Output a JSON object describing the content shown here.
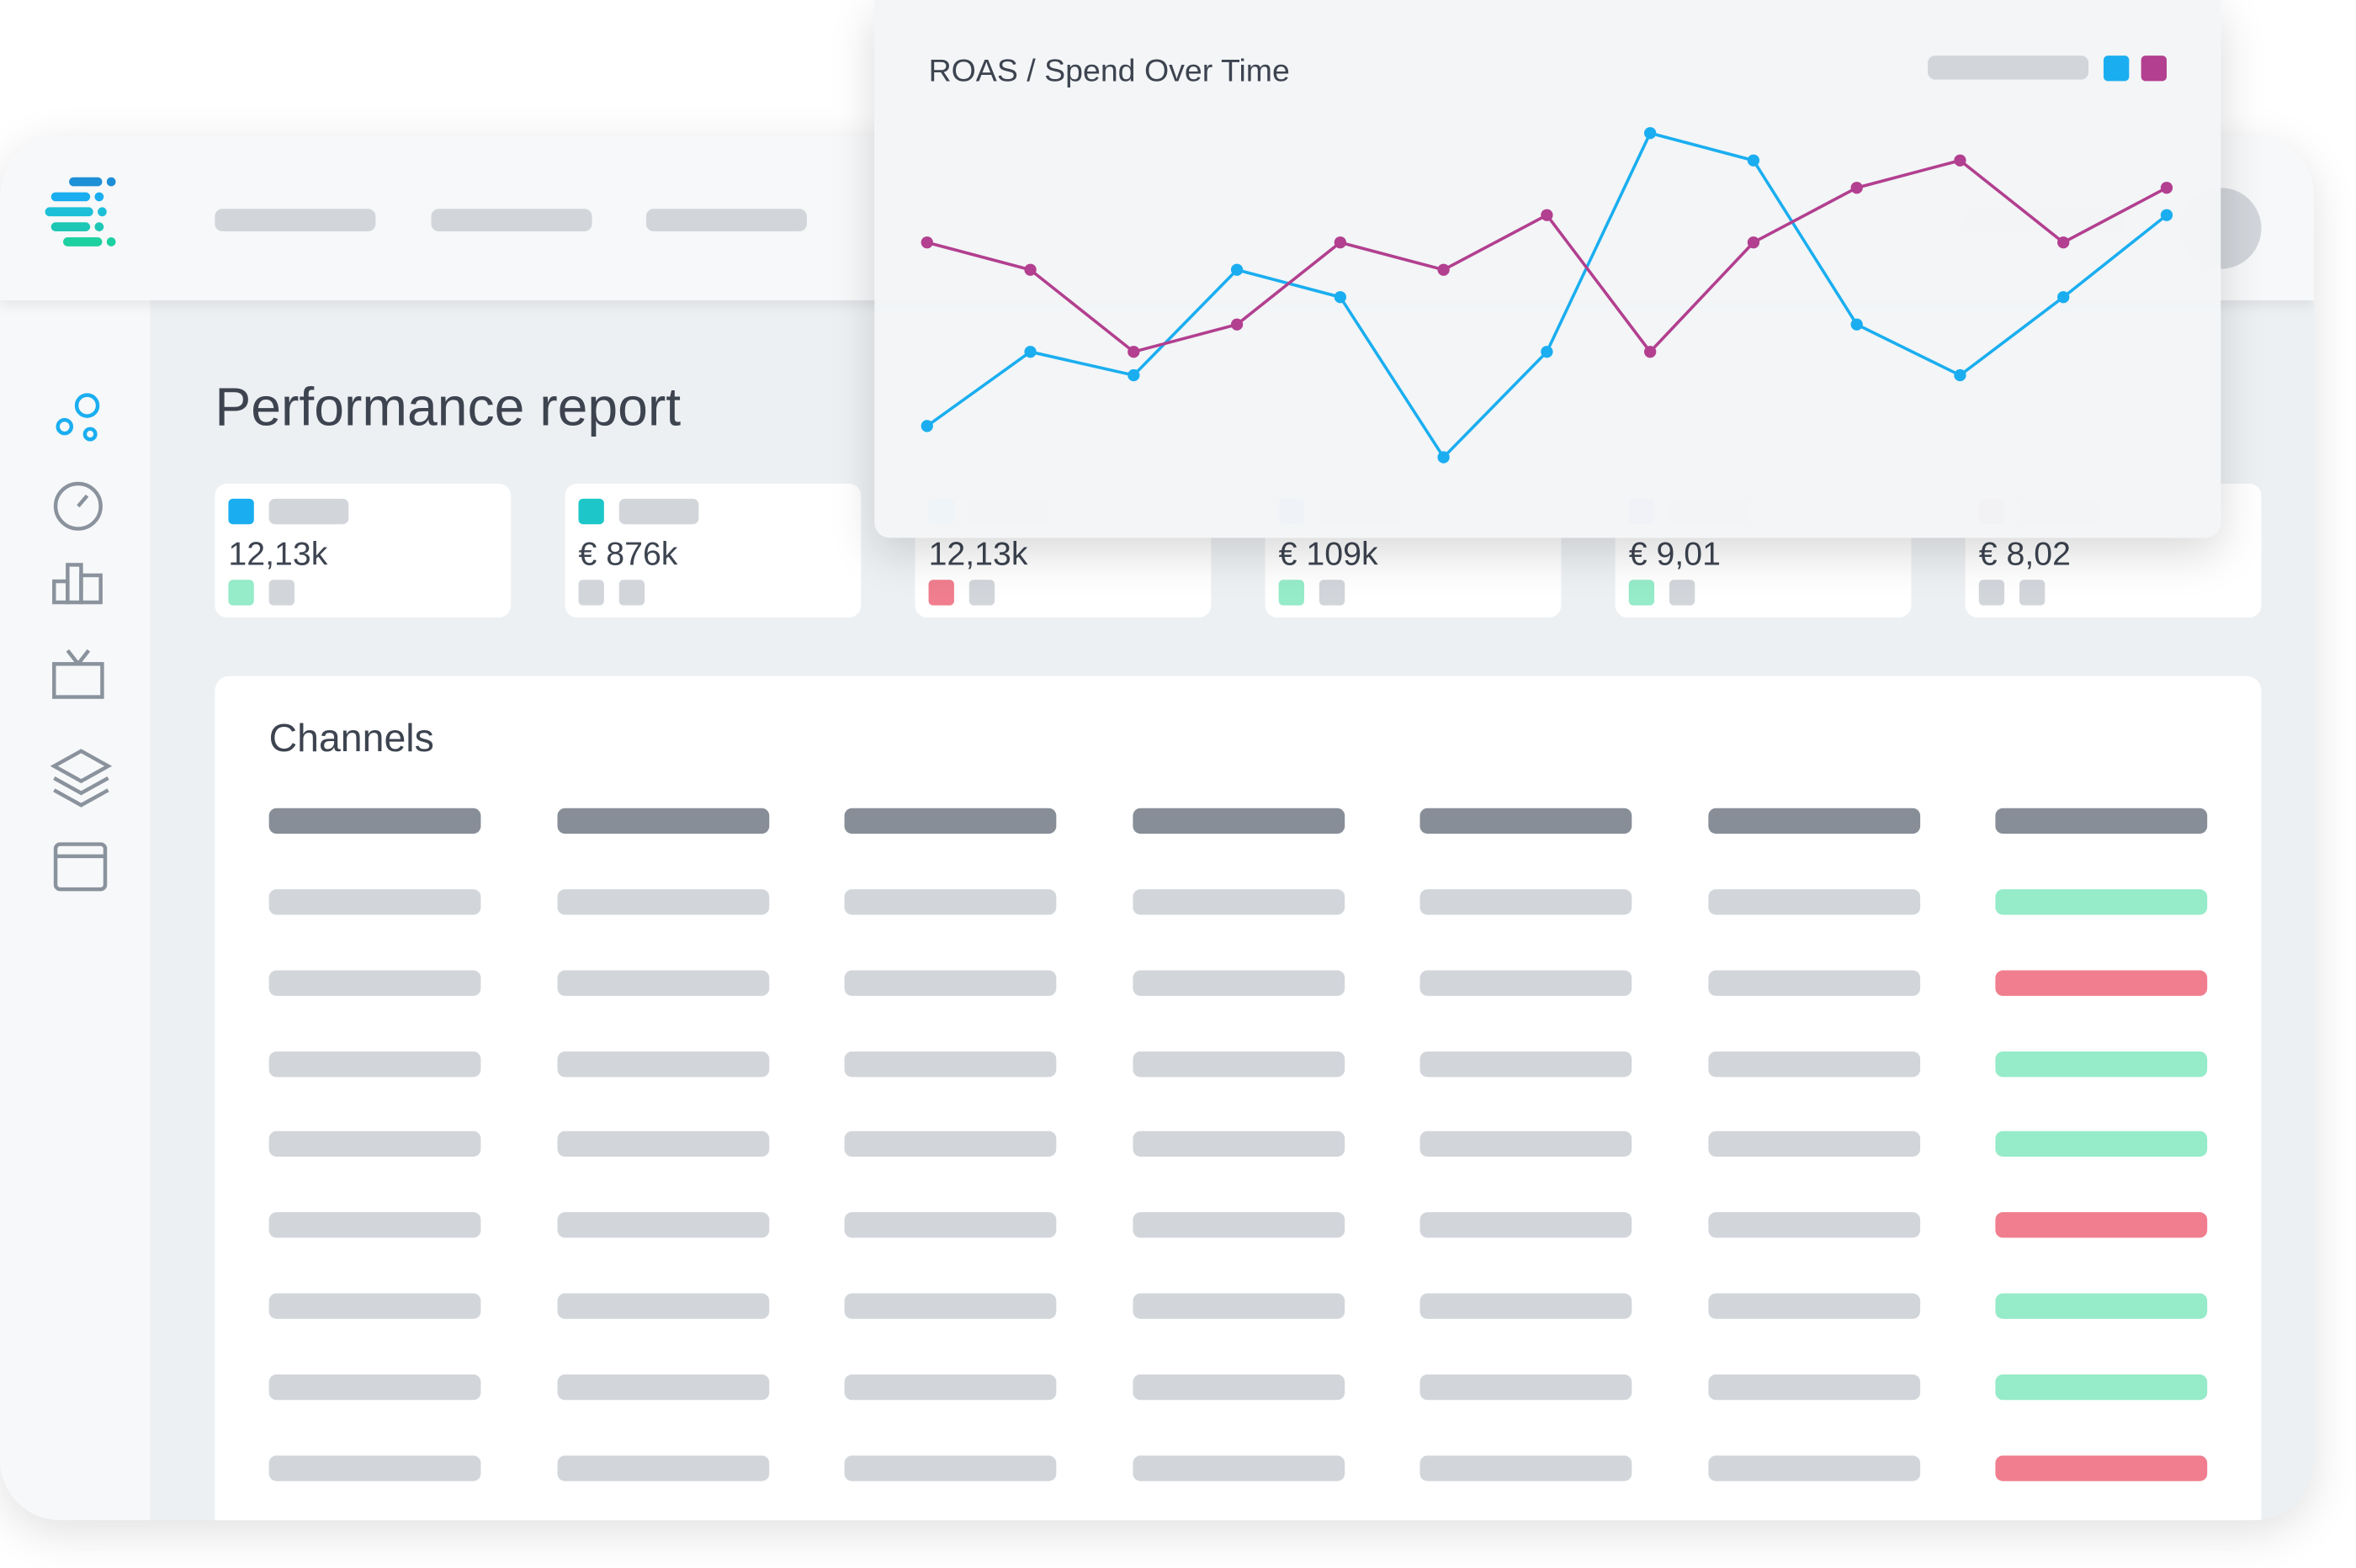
{
  "page": {
    "title": "Performance report",
    "channels_title": "Channels"
  },
  "kpis": [
    {
      "value": "12,13k"
    },
    {
      "value": "€ 876k"
    },
    {
      "value": "12,13k"
    },
    {
      "value": "€ 109k"
    },
    {
      "value": "€ 9,01"
    },
    {
      "value": "€ 8,02"
    }
  ],
  "chart_data": {
    "type": "line",
    "title": "ROAS / Spend Over Time",
    "categories": [
      null,
      null,
      null,
      null,
      null,
      null,
      null,
      null,
      null,
      null,
      null,
      null,
      null
    ],
    "ylim": [
      0,
      100
    ],
    "series": [
      {
        "color": "#1aaef0",
        "values": [
          14,
          33,
          27,
          54,
          47,
          6,
          33,
          89,
          82,
          40,
          27,
          47,
          68
        ]
      },
      {
        "color": "#b23f8f",
        "values": [
          61,
          54,
          33,
          40,
          61,
          54,
          68,
          33,
          61,
          75,
          82,
          61,
          75
        ]
      }
    ]
  }
}
